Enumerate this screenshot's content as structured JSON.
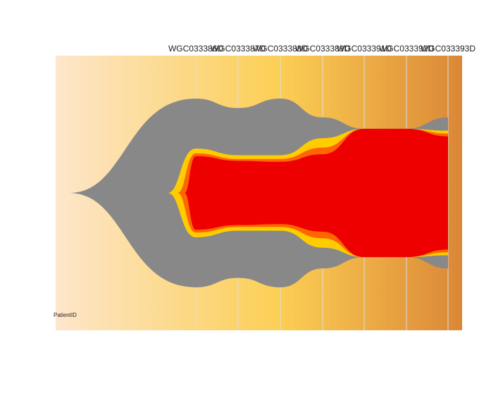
{
  "chart_data": {
    "type": "area",
    "chart_style": "fish plot (clonal evolution)",
    "x": [
      "WGC033386D",
      "WGC033387D",
      "WGC033388D",
      "WGC033389D",
      "WGC033391D",
      "WGC033392D",
      "WGC033393D"
    ],
    "corner_label": "PatientID",
    "ylim": [
      0,
      100
    ],
    "series": [
      {
        "color": "#888888",
        "values": [
          100,
          90,
          100,
          80,
          68,
          68,
          80
        ]
      },
      {
        "color": "#ffcc00",
        "values": [
          47,
          40,
          40,
          58,
          68,
          68,
          66
        ]
      },
      {
        "color": "#ff6600",
        "values": [
          42,
          36,
          36,
          48,
          68,
          68,
          63
        ]
      },
      {
        "color": "#ee0000",
        "values": [
          39,
          34,
          33,
          41,
          68,
          68,
          60
        ]
      }
    ],
    "colors": {
      "background_start": "#fde6cb",
      "background_mid": "#fccf54",
      "background_end": "#db8736",
      "divider": "#dddddd",
      "frame_top": "#fccf54"
    }
  }
}
